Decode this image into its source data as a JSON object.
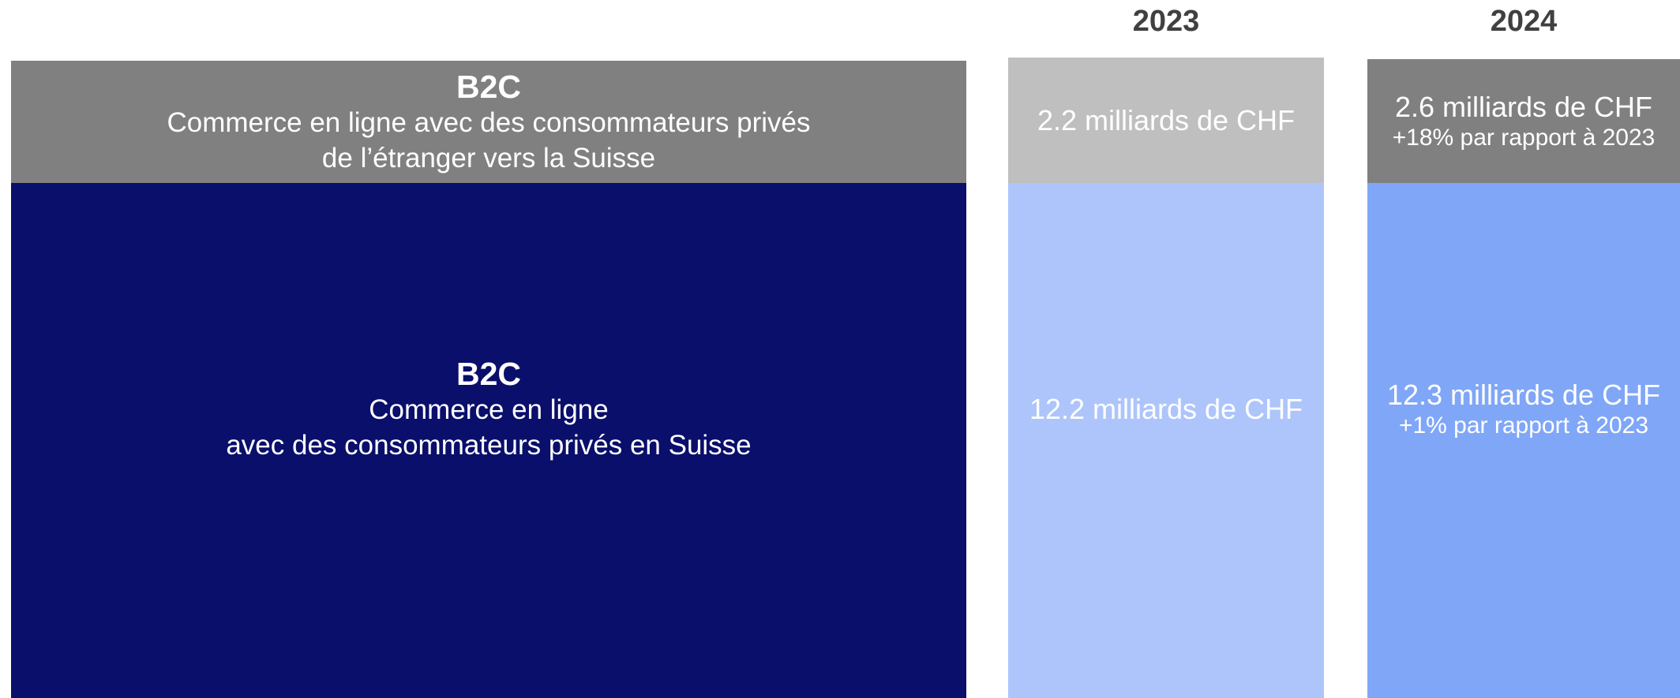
{
  "years": [
    "2023",
    "2024"
  ],
  "rows": [
    {
      "title": "B2C",
      "lines": [
        "Commerce en ligne avec des consommateurs privés",
        "de l’étranger vers la Suisse"
      ],
      "cells": [
        {
          "value": "2.2 milliards de CHF"
        },
        {
          "value": "2.6 milliards de CHF",
          "change": "+18% par rapport à 2023"
        }
      ]
    },
    {
      "title": "B2C",
      "lines": [
        "Commerce en ligne",
        "avec des consommateurs privés en Suisse"
      ],
      "cells": [
        {
          "value": "12.2 milliards de CHF"
        },
        {
          "value": "12.3 milliards de CHF",
          "change": "+1% par rapport à 2023"
        }
      ]
    }
  ]
}
